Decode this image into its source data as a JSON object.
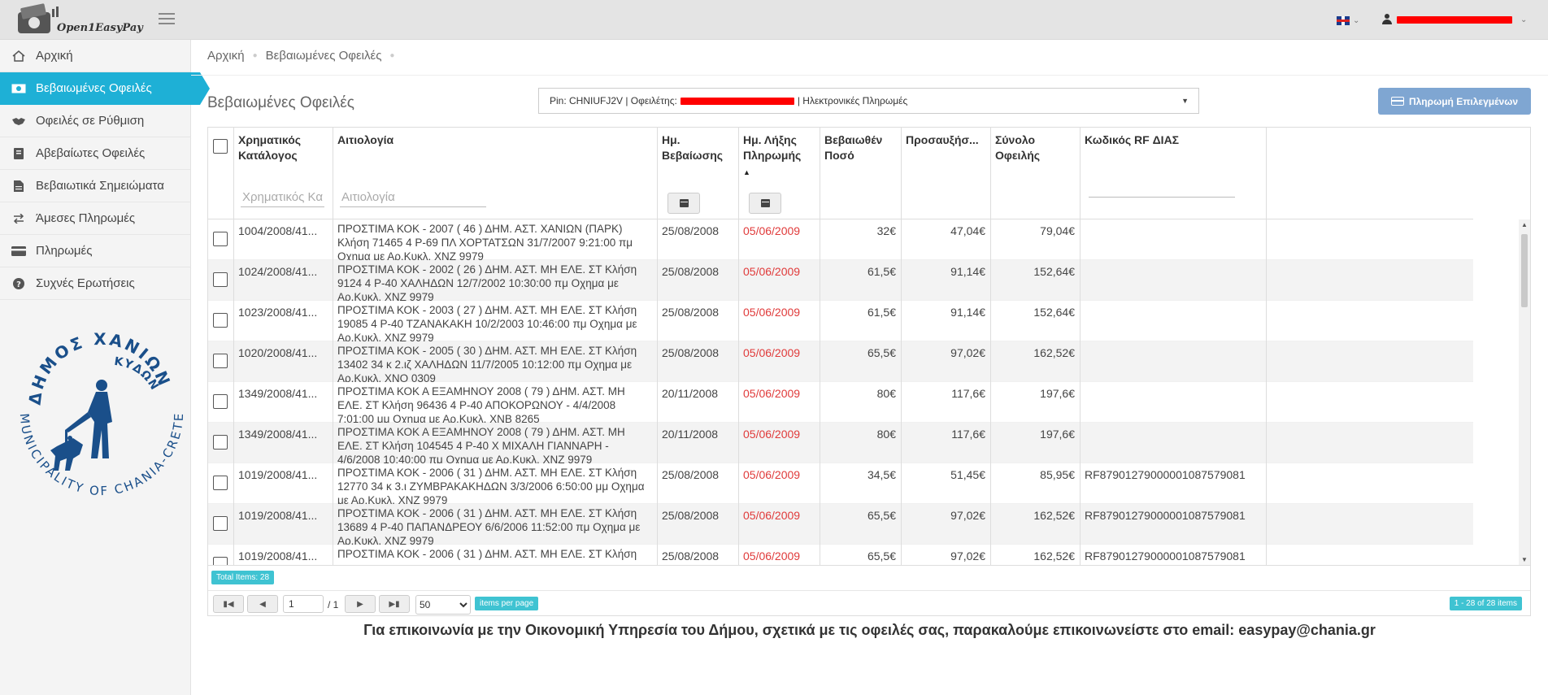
{
  "app": {
    "name": "Open1EasyPay"
  },
  "header": {
    "language": "EN"
  },
  "sidebar": {
    "items": [
      {
        "label": "Αρχική",
        "icon": "home-icon",
        "active": false
      },
      {
        "label": "Βεβαιωμένες Οφειλές",
        "icon": "money-icon",
        "active": true
      },
      {
        "label": "Οφειλές σε Ρύθμιση",
        "icon": "handshake-icon",
        "active": false
      },
      {
        "label": "Αβεβαίωτες Οφειλές",
        "icon": "book-icon",
        "active": false
      },
      {
        "label": "Βεβαιωτικά Σημειώματα",
        "icon": "document-icon",
        "active": false
      },
      {
        "label": "Άμεσες Πληρωμές",
        "icon": "exchange-icon",
        "active": false
      },
      {
        "label": "Πληρωμές",
        "icon": "credit-card-icon",
        "active": false
      },
      {
        "label": "Συχνές Ερωτήσεις",
        "icon": "question-icon",
        "active": false
      }
    ],
    "seal": {
      "top_text": "ΔΗΜΟΣ ΧΑΝΙΩΝ",
      "inner_text": "ΚΥΔΩΝ",
      "bottom_text": "MUNICIPALITY OF CHANIA-CRETE"
    }
  },
  "breadcrumb": [
    "Αρχική",
    "Βεβαιωμένες Οφειλές"
  ],
  "page": {
    "title": "Βεβαιωμένες Οφειλές",
    "pin_select": {
      "pin_label": "Pin: CHNIUFJ2V | Οφειλέτης:",
      "suffix": "| Ηλεκτρονικές Πληρωμές"
    },
    "pay_button": "Πληρωμή Επιλεγμένων"
  },
  "grid": {
    "columns": [
      {
        "label": "Χρηματικός Κατάλογος",
        "filter_placeholder": "Χρηματικός Κα"
      },
      {
        "label": "Αιτιολογία",
        "filter_placeholder": "Αιτιολογία"
      },
      {
        "label": "Ημ. Βεβαίωσης"
      },
      {
        "label": "Ημ. Λήξης Πληρωμής",
        "sorted": "asc"
      },
      {
        "label": "Βεβαιωθέν Ποσό"
      },
      {
        "label": "Προσαυξήσ..."
      },
      {
        "label": "Σύνολο Οφειλής"
      },
      {
        "label": "Κωδικός RF ΔΙΑΣ"
      }
    ],
    "rows": [
      {
        "catalog": "1004/2008/41...",
        "desc": "ΠΡΟΣΤΙΜΑ ΚΟΚ - 2007 ( 46 ) ΔΗΜ. ΑΣΤ. ΧΑΝΙΩΝ (ΠΑΡΚ) Κλήση 71465 4 Ρ-69 ΠΛ ΧΟΡΤΑΤΣΩΝ 31/7/2007 9:21:00 πμ Οχημα με Αρ.Κυκλ. ΧΝΖ 9979",
        "cert_date": "25/08/2008",
        "due_date": "05/06/2009",
        "amount": "32€",
        "surcharge": "47,04€",
        "total": "79,04€",
        "rf": ""
      },
      {
        "catalog": "1024/2008/41...",
        "desc": "ΠΡΟΣΤΙΜΑ ΚΟΚ - 2002 ( 26 ) ΔΗΜ. ΑΣΤ. ΜΗ ΕΛΕ. ΣΤ Κλήση 9124 4 Ρ-40 ΧΑΛΗΔΩΝ 12/7/2002 10:30:00 πμ Οχημα με Αρ.Κυκλ. ΧΝΖ 9979",
        "cert_date": "25/08/2008",
        "due_date": "05/06/2009",
        "amount": "61,5€",
        "surcharge": "91,14€",
        "total": "152,64€",
        "rf": ""
      },
      {
        "catalog": "1023/2008/41...",
        "desc": "ΠΡΟΣΤΙΜΑ ΚΟΚ - 2003 ( 27 ) ΔΗΜ. ΑΣΤ. ΜΗ ΕΛΕ. ΣΤ Κλήση 19085 4 Ρ-40 ΤΖΑΝΑΚΑΚΗ 10/2/2003 10:46:00 πμ Οχημα με Αρ.Κυκλ. ΧΝΖ 9979",
        "cert_date": "25/08/2008",
        "due_date": "05/06/2009",
        "amount": "61,5€",
        "surcharge": "91,14€",
        "total": "152,64€",
        "rf": ""
      },
      {
        "catalog": "1020/2008/41...",
        "desc": "ΠΡΟΣΤΙΜΑ ΚΟΚ - 2005 ( 30 ) ΔΗΜ. ΑΣΤ. ΜΗ ΕΛΕ. ΣΤ Κλήση 13402 34 κ 2.ιζ ΧΑΛΗΔΩΝ 11/7/2005 10:12:00 πμ Οχημα με Αρ.Κυκλ. ΧΝΟ 0309",
        "cert_date": "25/08/2008",
        "due_date": "05/06/2009",
        "amount": "65,5€",
        "surcharge": "97,02€",
        "total": "162,52€",
        "rf": ""
      },
      {
        "catalog": "1349/2008/41...",
        "desc": "ΠΡΟΣΤΙΜΑ ΚΟΚ Α ΕΞΑΜΗΝΟΥ 2008 ( 79 ) ΔΗΜ. ΑΣΤ. ΜΗ ΕΛΕ. ΣΤ Κλήση 96436 4 Ρ-40 ΑΠΟΚΟΡΩΝΟΥ - 4/4/2008 7:01:00 μμ Οχημα με Αρ.Κυκλ. ΧΝΒ 8265",
        "cert_date": "20/11/2008",
        "due_date": "05/06/2009",
        "amount": "80€",
        "surcharge": "117,6€",
        "total": "197,6€",
        "rf": ""
      },
      {
        "catalog": "1349/2008/41...",
        "desc": "ΠΡΟΣΤΙΜΑ ΚΟΚ Α ΕΞΑΜΗΝΟΥ 2008 ( 79 ) ΔΗΜ. ΑΣΤ. ΜΗ ΕΛΕ. ΣΤ Κλήση 104545 4 Ρ-40 Χ ΜΙΧΑΛΗ ΓΙΑΝΝΑΡΗ - 4/6/2008 10:40:00 πμ Οχημα με Αρ.Κυκλ. ΧΝΖ 9979",
        "cert_date": "20/11/2008",
        "due_date": "05/06/2009",
        "amount": "80€",
        "surcharge": "117,6€",
        "total": "197,6€",
        "rf": ""
      },
      {
        "catalog": "1019/2008/41...",
        "desc": "ΠΡΟΣΤΙΜΑ ΚΟΚ - 2006 ( 31 ) ΔΗΜ. ΑΣΤ. ΜΗ ΕΛΕ. ΣΤ Κλήση 12770 34 κ 3.ι ΖΥΜΒΡΑΚΑΚΗΔΩΝ 3/3/2006 6:50:00 μμ Οχημα με Αρ.Κυκλ. ΧΝΖ 9979",
        "cert_date": "25/08/2008",
        "due_date": "05/06/2009",
        "amount": "34,5€",
        "surcharge": "51,45€",
        "total": "85,95€",
        "rf": "RF87901279000001087579081"
      },
      {
        "catalog": "1019/2008/41...",
        "desc": "ΠΡΟΣΤΙΜΑ ΚΟΚ - 2006 ( 31 ) ΔΗΜ. ΑΣΤ. ΜΗ ΕΛΕ. ΣΤ Κλήση 13689 4 Ρ-40 ΠΑΠΑΝΔΡΕΟΥ 6/6/2006 11:52:00 πμ Οχημα με Αρ.Κυκλ. ΧΝΖ 9979",
        "cert_date": "25/08/2008",
        "due_date": "05/06/2009",
        "amount": "65,5€",
        "surcharge": "97,02€",
        "total": "162,52€",
        "rf": "RF87901279000001087579081"
      },
      {
        "catalog": "1019/2008/41...",
        "desc": "ΠΡΟΣΤΙΜΑ ΚΟΚ - 2006 ( 31 ) ΔΗΜ. ΑΣΤ. ΜΗ ΕΛΕ. ΣΤ Κλήση",
        "cert_date": "25/08/2008",
        "due_date": "05/06/2009",
        "amount": "65,5€",
        "surcharge": "97,02€",
        "total": "162,52€",
        "rf": "RF87901279000001087579081"
      }
    ],
    "footer": {
      "total_items": "Total Items: 28",
      "page_value": "1",
      "of_pages": "/ 1",
      "page_size": "50",
      "items_per_page": "items per page",
      "range": "1 - 28 of 28 items"
    }
  },
  "contact_note": "Για επικοινωνία με την Οικονομική Υπηρεσία του Δήμου, σχετικά με τις οφειλές σας, παρακαλούμε επικοινωνείστε στο email: easypay@chania.gr"
}
